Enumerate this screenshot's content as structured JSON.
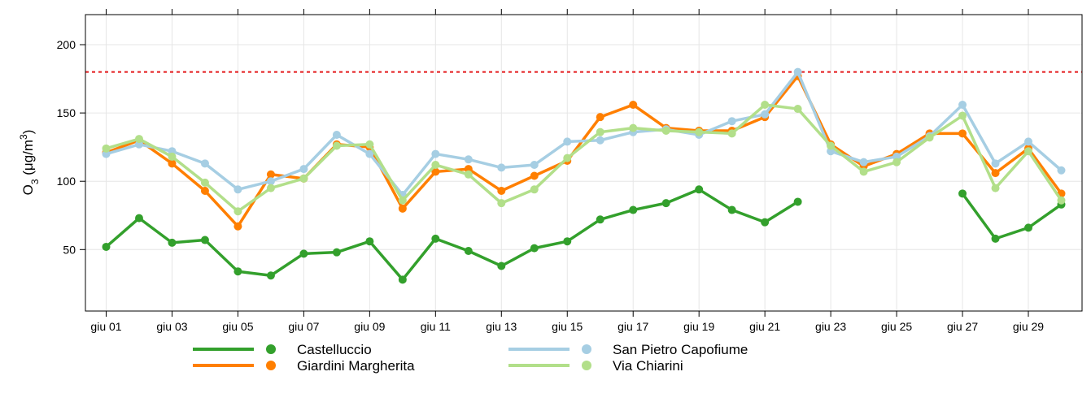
{
  "chart_data": {
    "type": "line",
    "ylabel_parts": [
      "O",
      "3",
      " (μg/m",
      "3",
      ")"
    ],
    "categories": [
      "giu 01",
      null,
      "giu 03",
      null,
      "giu 05",
      null,
      "giu 07",
      null,
      "giu 09",
      null,
      "giu 11",
      null,
      "giu 13",
      null,
      "giu 15",
      null,
      "giu 17",
      null,
      "giu 19",
      null,
      "giu 21",
      null,
      "giu 23",
      null,
      "giu 25",
      null,
      "giu 27",
      null,
      "giu 29",
      null
    ],
    "series": [
      {
        "name": "Castelluccio",
        "color": "#33a02c",
        "values": [
          52,
          73,
          55,
          57,
          34,
          31,
          47,
          48,
          56,
          28,
          58,
          49,
          38,
          51,
          56,
          72,
          79,
          84,
          94,
          79,
          70,
          85,
          null,
          null,
          null,
          null,
          91,
          58,
          66,
          83
        ]
      },
      {
        "name": "Giardini Margherita",
        "color": "#ff7f00",
        "values": [
          121,
          130,
          113,
          93,
          67,
          105,
          102,
          127,
          125,
          80,
          107,
          109,
          93,
          104,
          115,
          147,
          156,
          139,
          137,
          137,
          147,
          177,
          127,
          111,
          120,
          135,
          135,
          106,
          124,
          91
        ]
      },
      {
        "name": "San Pietro Capofiume",
        "color": "#a6cee3",
        "values": [
          120,
          127,
          122,
          113,
          94,
          100,
          109,
          134,
          120,
          90,
          120,
          116,
          110,
          112,
          129,
          130,
          136,
          138,
          134,
          144,
          149,
          180,
          122,
          114,
          118,
          133,
          156,
          113,
          129,
          108
        ]
      },
      {
        "name": "Via Chiarini",
        "color": "#b2df8a",
        "values": [
          124,
          131,
          118,
          99,
          78,
          95,
          102,
          126,
          127,
          86,
          112,
          105,
          84,
          94,
          117,
          136,
          139,
          137,
          136,
          135,
          156,
          153,
          126,
          107,
          114,
          132,
          148,
          95,
          122,
          86
        ]
      }
    ],
    "ylim": [
      5,
      222
    ],
    "yticks": [
      50,
      100,
      150,
      200
    ],
    "grid": true,
    "reference_line": {
      "value": 180,
      "color": "#e41a1c"
    },
    "legend_position": "bottom"
  }
}
